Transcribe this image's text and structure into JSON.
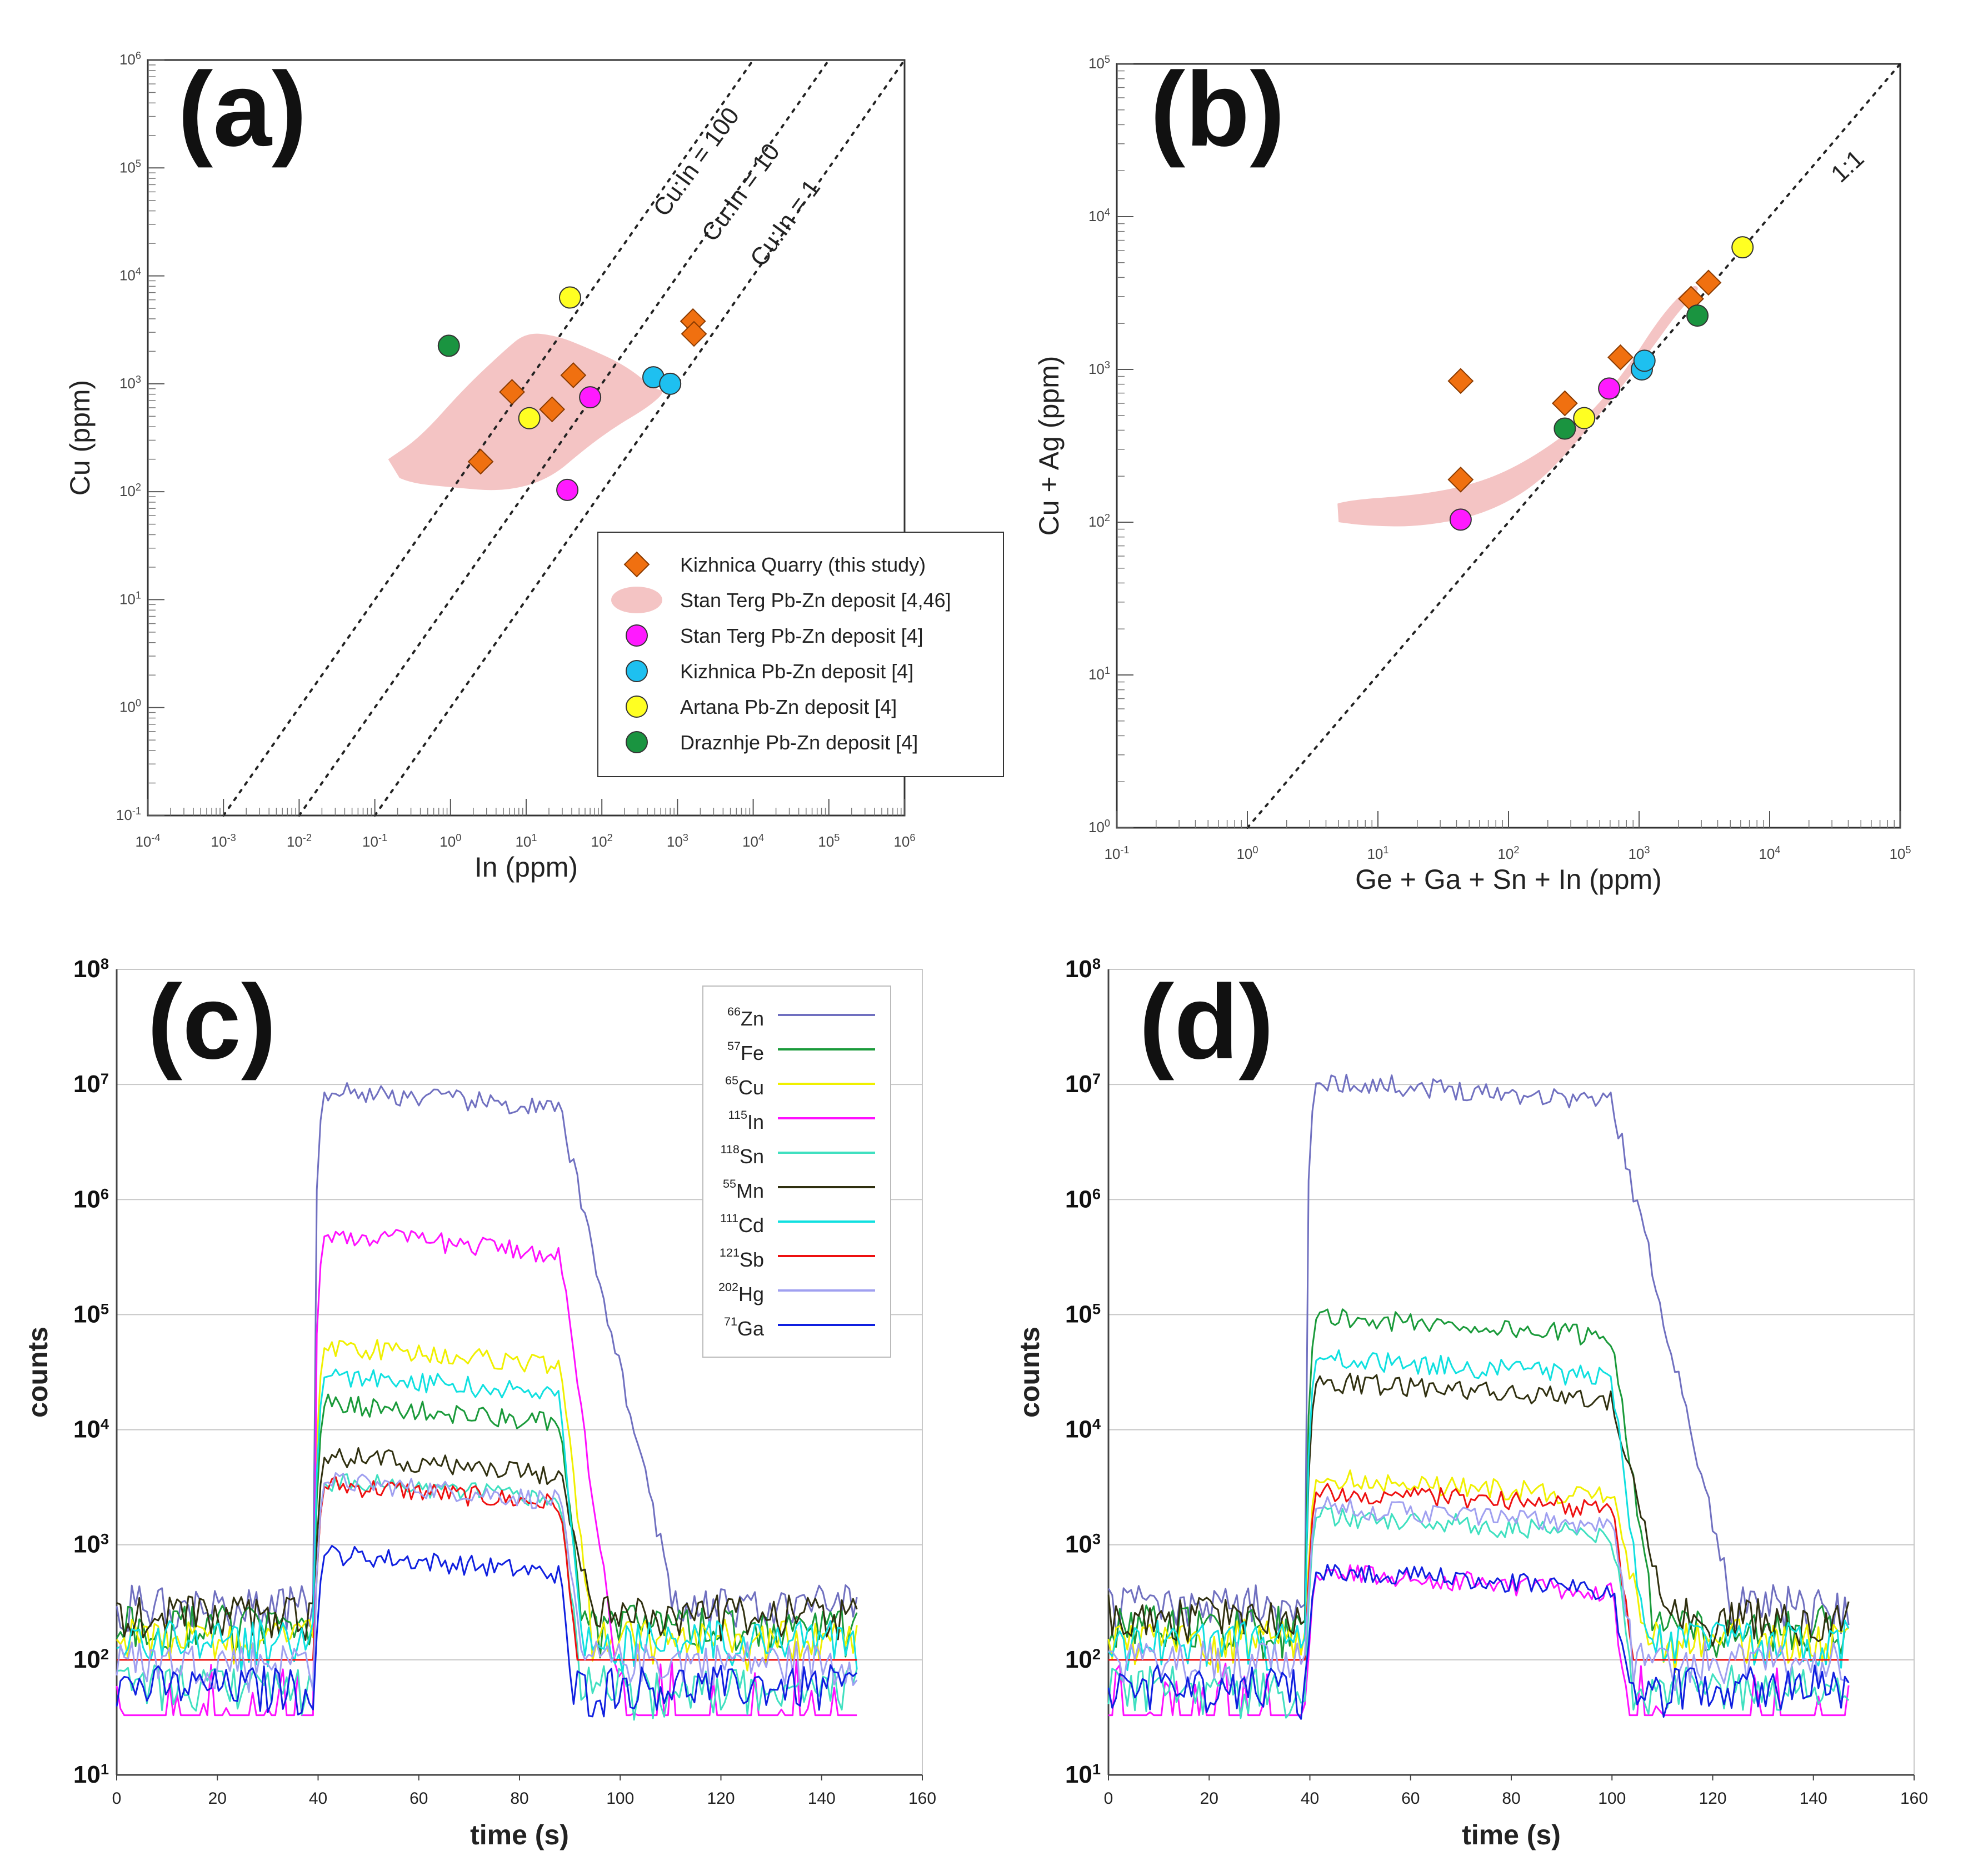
{
  "chart_data": [
    {
      "panel": "(a)",
      "type": "scatter",
      "xlabel": "In (ppm)",
      "ylabel": "Cu (ppm)",
      "xscale": "log",
      "yscale": "log",
      "xlim": [
        0.0001,
        1000000
      ],
      "ylim": [
        0.1,
        1000000
      ],
      "x_ticks": [
        "10-4",
        "10-3",
        "10-2",
        "10-1",
        "100",
        "101",
        "102",
        "103",
        "104",
        "105",
        "106"
      ],
      "y_ticks": [
        "10-1",
        "100",
        "101",
        "102",
        "103",
        "104",
        "105",
        "106"
      ],
      "reference_lines": [
        {
          "label": "Cu:In = 100",
          "ratio": 100
        },
        {
          "label": "Cu:In = 10",
          "ratio": 10
        },
        {
          "label": "Cu:In = 1",
          "ratio": 1
        }
      ],
      "field_label": "Stan Terg Pb-Zn deposit [4,46]",
      "field_outline": [
        [
          0.15,
          200
        ],
        [
          0.4,
          320
        ],
        [
          1.5,
          900
        ],
        [
          5,
          2000
        ],
        [
          10,
          3000
        ],
        [
          25,
          2800
        ],
        [
          60,
          2200
        ],
        [
          200,
          1500
        ],
        [
          500,
          900
        ],
        [
          700,
          850
        ],
        [
          400,
          600
        ],
        [
          150,
          400
        ],
        [
          60,
          250
        ],
        [
          20,
          130
        ],
        [
          5,
          100
        ],
        [
          1,
          110
        ],
        [
          0.3,
          120
        ],
        [
          0.15,
          150
        ]
      ],
      "series": [
        {
          "name": "Kizhnica Quarry (this study)",
          "marker": "diamond",
          "color": "#f07010",
          "points": [
            [
              2.5,
              190
            ],
            [
              6.5,
              840
            ],
            [
              22,
              580
            ],
            [
              42,
              1200
            ],
            [
              1600,
              3800
            ],
            [
              1650,
              2900
            ]
          ]
        },
        {
          "name": "Stan Terg Pb-Zn deposit [4]",
          "marker": "circle",
          "color": "#ff1aff",
          "points": [
            [
              35,
              104
            ],
            [
              70,
              750
            ]
          ]
        },
        {
          "name": "Kizhnica Pb-Zn deposit [4]",
          "marker": "circle",
          "color": "#1ec0f0",
          "points": [
            [
              480,
              1150
            ],
            [
              800,
              1000
            ]
          ]
        },
        {
          "name": "Artana Pb-Zn deposit [4]",
          "marker": "circle",
          "color": "#ffff22",
          "points": [
            [
              11,
              480
            ],
            [
              38,
              6300
            ]
          ]
        },
        {
          "name": "Draznhje Pb-Zn deposit [4]",
          "marker": "circle",
          "color": "#1a9440",
          "points": [
            [
              0.95,
              2250
            ]
          ]
        }
      ],
      "legend": {
        "position": "bottom-right",
        "entries": [
          {
            "label": "Kizhnica Quarry (this study)",
            "marker": "diamond",
            "color": "#f07010"
          },
          {
            "label": "Stan Terg Pb-Zn deposit [4,46]",
            "marker": "field",
            "color": "#f4c4c4"
          },
          {
            "label": "Stan Terg Pb-Zn deposit [4]",
            "marker": "circle",
            "color": "#ff1aff"
          },
          {
            "label": "Kizhnica Pb-Zn deposit [4]",
            "marker": "circle",
            "color": "#1ec0f0"
          },
          {
            "label": "Artana Pb-Zn deposit [4]",
            "marker": "circle",
            "color": "#ffff22"
          },
          {
            "label": "Draznhje Pb-Zn deposit [4]",
            "marker": "circle",
            "color": "#1a9440"
          }
        ]
      }
    },
    {
      "panel": "(b)",
      "type": "scatter",
      "xlabel": "Ge + Ga + Sn + In (ppm)",
      "ylabel": "Cu + Ag (ppm)",
      "xscale": "log",
      "yscale": "log",
      "xlim": [
        0.1,
        100000
      ],
      "ylim": [
        1,
        100000
      ],
      "x_ticks": [
        "10-1",
        "100",
        "101",
        "102",
        "103",
        "104",
        "105"
      ],
      "y_ticks": [
        "100",
        "101",
        "102",
        "103",
        "104",
        "105"
      ],
      "reference_lines": [
        {
          "label": "1:1",
          "ratio": 1
        }
      ],
      "field_outline": [
        [
          5,
          100
        ],
        [
          8,
          95
        ],
        [
          20,
          93
        ],
        [
          60,
          110
        ],
        [
          150,
          165
        ],
        [
          300,
          300
        ],
        [
          600,
          620
        ],
        [
          1200,
          1300
        ],
        [
          2000,
          2400
        ],
        [
          3000,
          3400
        ],
        [
          2500,
          3600
        ],
        [
          1500,
          2300
        ],
        [
          800,
          1000
        ],
        [
          400,
          480
        ],
        [
          150,
          260
        ],
        [
          60,
          180
        ],
        [
          20,
          150
        ],
        [
          6,
          140
        ],
        [
          4,
          125
        ]
      ],
      "series": [
        {
          "name": "Kizhnica Quarry (this study)",
          "marker": "diamond",
          "color": "#f07010",
          "points": [
            [
              43,
              840
            ],
            [
              43,
              190
            ],
            [
              270,
              600
            ],
            [
              720,
              1200
            ],
            [
              2500,
              2900
            ],
            [
              3400,
              3700
            ]
          ]
        },
        {
          "name": "Stan Terg Pb-Zn deposit [4]",
          "marker": "circle",
          "color": "#ff1aff",
          "points": [
            [
              43,
              104
            ],
            [
              590,
              750
            ]
          ]
        },
        {
          "name": "Kizhnica Pb-Zn deposit [4]",
          "marker": "circle",
          "color": "#1ec0f0",
          "points": [
            [
              1050,
              1000
            ],
            [
              1100,
              1140
            ]
          ]
        },
        {
          "name": "Artana Pb-Zn deposit [4]",
          "marker": "circle",
          "color": "#ffff22",
          "points": [
            [
              380,
              480
            ],
            [
              6200,
              6300
            ]
          ]
        },
        {
          "name": "Draznhje Pb-Zn deposit [4]",
          "marker": "circle",
          "color": "#1a9440",
          "points": [
            [
              270,
              410
            ],
            [
              2800,
              2250
            ]
          ]
        }
      ]
    },
    {
      "panel": "(c)",
      "type": "line",
      "xlabel": "time (s)",
      "ylabel": "counts",
      "yscale": "log",
      "xlim": [
        0,
        160
      ],
      "ylim": [
        10,
        100000000
      ],
      "x_ticks": [
        "0",
        "20",
        "40",
        "60",
        "80",
        "100",
        "120",
        "140",
        "160"
      ],
      "y_ticks": [
        "101",
        "102",
        "103",
        "104",
        "105",
        "106",
        "107",
        "108"
      ],
      "ablation_window": [
        40,
        88
      ],
      "series": [
        {
          "isotope": "66Zn",
          "mass": "66",
          "element": "Zn",
          "color": "#7070c0",
          "background": 300,
          "plateau": 7500000,
          "decay_end": 110
        },
        {
          "isotope": "57Fe",
          "mass": "57",
          "element": "Fe",
          "color": "#1a9a3a",
          "background": 200,
          "plateau": 14000,
          "decay_end": 92
        },
        {
          "isotope": "65Cu",
          "mass": "65",
          "element": "Cu",
          "color": "#f0f000",
          "background": 150,
          "plateau": 45000,
          "decay_end": 94
        },
        {
          "isotope": "115In",
          "mass": "115",
          "element": "In",
          "color": "#ff10ff",
          "background": 33,
          "plateau": 420000,
          "decay_end": 100
        },
        {
          "isotope": "118Sn",
          "mass": "118",
          "element": "Sn",
          "color": "#40e0c0",
          "background": 60,
          "plateau": 3000,
          "decay_end": 92
        },
        {
          "isotope": "55Mn",
          "mass": "55",
          "element": "Mn",
          "color": "#303010",
          "background": 250,
          "plateau": 5000,
          "decay_end": 94
        },
        {
          "isotope": "111Cd",
          "mass": "111",
          "element": "Cd",
          "color": "#10e0e0",
          "background": 150,
          "plateau": 25000,
          "decay_end": 92
        },
        {
          "isotope": "121Sb",
          "mass": "121",
          "element": "Sb",
          "color": "#ee1010",
          "background": 100,
          "plateau": 2800,
          "decay_end": 91
        },
        {
          "isotope": "202Hg",
          "mass": "202",
          "element": "Hg",
          "color": "#a0a0f0",
          "background": 100,
          "plateau": 3000,
          "decay_end": 92
        },
        {
          "isotope": "71Ga",
          "mass": "71",
          "element": "Ga",
          "color": "#1020e0",
          "background": 60,
          "plateau": 700,
          "decay_end": 90
        }
      ]
    },
    {
      "panel": "(d)",
      "type": "line",
      "xlabel": "time (s)",
      "ylabel": "counts",
      "yscale": "log",
      "xlim": [
        0,
        160
      ],
      "ylim": [
        10,
        100000000
      ],
      "x_ticks": [
        "0",
        "20",
        "40",
        "60",
        "80",
        "100",
        "120",
        "140",
        "160"
      ],
      "y_ticks": [
        "101",
        "102",
        "103",
        "104",
        "105",
        "106",
        "107",
        "108"
      ],
      "ablation_window": [
        40,
        100
      ],
      "series": [
        {
          "isotope": "66Zn",
          "color": "#7070c0",
          "background": 300,
          "plateau": 9000000,
          "decay_end": 123
        },
        {
          "isotope": "57Fe",
          "color": "#1a9a3a",
          "background": 200,
          "plateau": 80000,
          "decay_end": 108
        },
        {
          "isotope": "65Cu",
          "color": "#f0f000",
          "background": 150,
          "plateau": 3200,
          "decay_end": 106
        },
        {
          "isotope": "115In",
          "color": "#ff10ff",
          "background": 33,
          "plateau": 480,
          "decay_end": 103
        },
        {
          "isotope": "118Sn",
          "color": "#40e0c0",
          "background": 60,
          "plateau": 1500,
          "decay_end": 104
        },
        {
          "isotope": "55Mn",
          "color": "#303010",
          "background": 250,
          "plateau": 22000,
          "decay_end": 110
        },
        {
          "isotope": "111Cd",
          "color": "#10e0e0",
          "background": 150,
          "plateau": 35000,
          "decay_end": 106
        },
        {
          "isotope": "121Sb",
          "color": "#ee1010",
          "background": 100,
          "plateau": 2500,
          "decay_end": 104
        },
        {
          "isotope": "202Hg",
          "color": "#a0a0f0",
          "background": 100,
          "plateau": 1800,
          "decay_end": 104
        },
        {
          "isotope": "71Ga",
          "color": "#1020e0",
          "background": 60,
          "plateau": 500,
          "decay_end": 103
        }
      ]
    }
  ]
}
